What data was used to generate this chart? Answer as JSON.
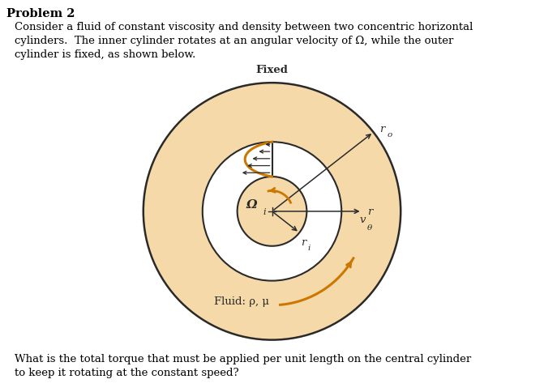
{
  "title": "Problem 2",
  "text_line1": "Consider a fluid of constant viscosity and density between two concentric horizontal",
  "text_line2": "cylinders.  The inner cylinder rotates at an angular velocity of Ω, while the outer",
  "text_line3": "cylinder is fixed, as shown below.",
  "bottom_line1": "What is the total torque that must be applied per unit length on the central cylinder",
  "bottom_line2": "to keep it rotating at the constant speed?",
  "outer_fill": "#F5D9A8",
  "white_fill": "#FFFFFF",
  "inner_fill": "#F5D9A8",
  "edge_color": "#2a2a2a",
  "arrow_color": "#2a2a2a",
  "orange_color": "#CC7700",
  "label_omega": "Ω",
  "label_omega_sub": "i",
  "label_ro": "r",
  "label_ro_sub": "o",
  "label_ri": "r",
  "label_ri_sub": "i",
  "label_r": "r",
  "label_vtheta": "v",
  "label_vtheta_sub": "θ",
  "label_fluid": "Fluid: ρ, μ",
  "label_fixed": "Fixed",
  "background": "#FFFFFF"
}
